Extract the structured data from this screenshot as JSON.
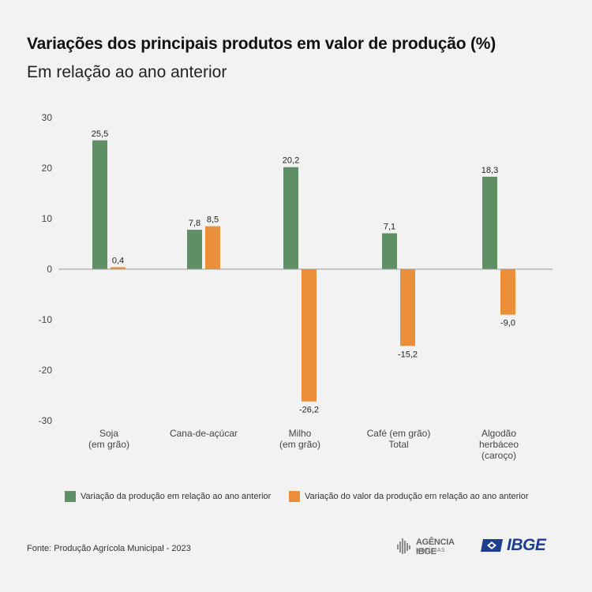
{
  "title": "Variações dos principais produtos em valor de produção (%)",
  "subtitle": "Em relação ao ano anterior",
  "chart_data": {
    "type": "bar",
    "categories": [
      [
        "Soja",
        "(em grão)"
      ],
      [
        "Cana-de-açúcar"
      ],
      [
        "Milho",
        "(em grão)"
      ],
      [
        "Café (em grão)",
        "Total"
      ],
      [
        "Algodão",
        "herbáceo",
        "(caroço)"
      ]
    ],
    "series": [
      {
        "name": "Variação da produção em relação ao ano anterior",
        "values": [
          25.5,
          7.8,
          20.2,
          7.1,
          18.3
        ],
        "labels": [
          "25,5",
          "7,8",
          "20,2",
          "7,1",
          "18,3"
        ],
        "color": "#5e8f65"
      },
      {
        "name": "Variação do valor da produção em relação ao ano anterior",
        "values": [
          0.4,
          8.5,
          -26.2,
          -15.2,
          -9.0
        ],
        "labels": [
          "0,4",
          "8,5",
          "-26,2",
          "-15,2",
          "-9,0"
        ],
        "color": "#ec8f3b"
      }
    ],
    "ylim": [
      -30,
      30
    ],
    "yticks": [
      30,
      20,
      10,
      0,
      -10,
      -20,
      -30
    ],
    "grid": false,
    "legend": "bottom"
  },
  "source": "Fonte: Produção Agrícola Municipal - 2023",
  "logos": {
    "agencia_name": "AGÊNCIA IBGE",
    "agencia_sub": "NOTÍCIAS",
    "ibge": "IBGE"
  },
  "colors": {
    "background": "#f2f2f2",
    "production": "#5e8f65",
    "value": "#ec8f3b",
    "ibge_blue": "#1e3f8f"
  }
}
